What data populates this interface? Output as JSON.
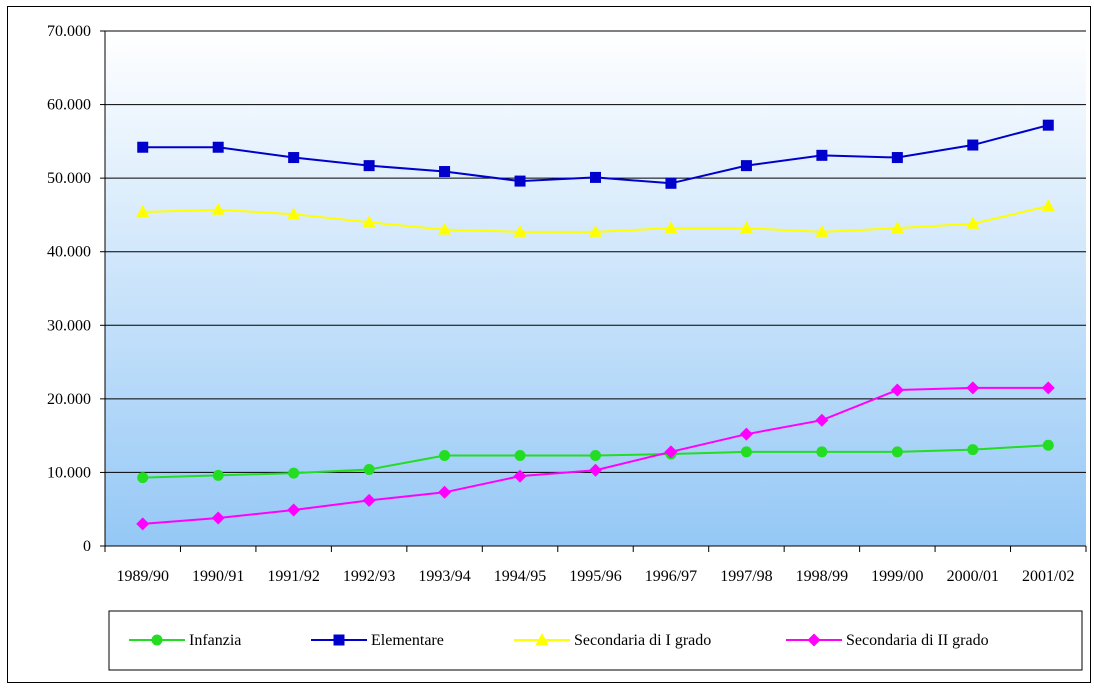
{
  "chart_data": {
    "type": "line",
    "title": "",
    "xlabel": "",
    "ylabel": "",
    "categories": [
      "1989/90",
      "1990/91",
      "1991/92",
      "1992/93",
      "1993/94",
      "1994/95",
      "1995/96",
      "1996/97",
      "1997/98",
      "1998/99",
      "1999/00",
      "2000/01",
      "2001/02"
    ],
    "ylim": [
      0,
      70000
    ],
    "yticks": [
      0,
      10000,
      20000,
      30000,
      40000,
      50000,
      60000,
      70000
    ],
    "ytick_labels": [
      "0",
      "10.000",
      "20.000",
      "30.000",
      "40.000",
      "50.000",
      "60.000",
      "70.000"
    ],
    "grid": "horizontal",
    "legend_position": "bottom",
    "series": [
      {
        "name": "Infanzia",
        "color": "#22dd22",
        "marker": "circle",
        "values": [
          9300,
          9600,
          9900,
          10400,
          12300,
          12300,
          12300,
          12500,
          12800,
          12800,
          12800,
          13100,
          13700
        ]
      },
      {
        "name": "Elementare",
        "color": "#0000cc",
        "marker": "square",
        "values": [
          54200,
          54200,
          52800,
          51700,
          50900,
          49600,
          50100,
          49300,
          51700,
          53100,
          52800,
          54500,
          57200
        ]
      },
      {
        "name": "Secondaria di I grado",
        "color": "#ffff00",
        "marker": "triangle",
        "values": [
          45400,
          45700,
          45100,
          44000,
          43000,
          42700,
          42700,
          43200,
          43200,
          42700,
          43200,
          43800,
          46200
        ]
      },
      {
        "name": "Secondaria di II grado",
        "color": "#ff00ff",
        "marker": "diamond",
        "values": [
          3000,
          3800,
          4900,
          6200,
          7300,
          9500,
          10300,
          12800,
          15200,
          17100,
          21200,
          21500,
          21500
        ]
      }
    ]
  }
}
